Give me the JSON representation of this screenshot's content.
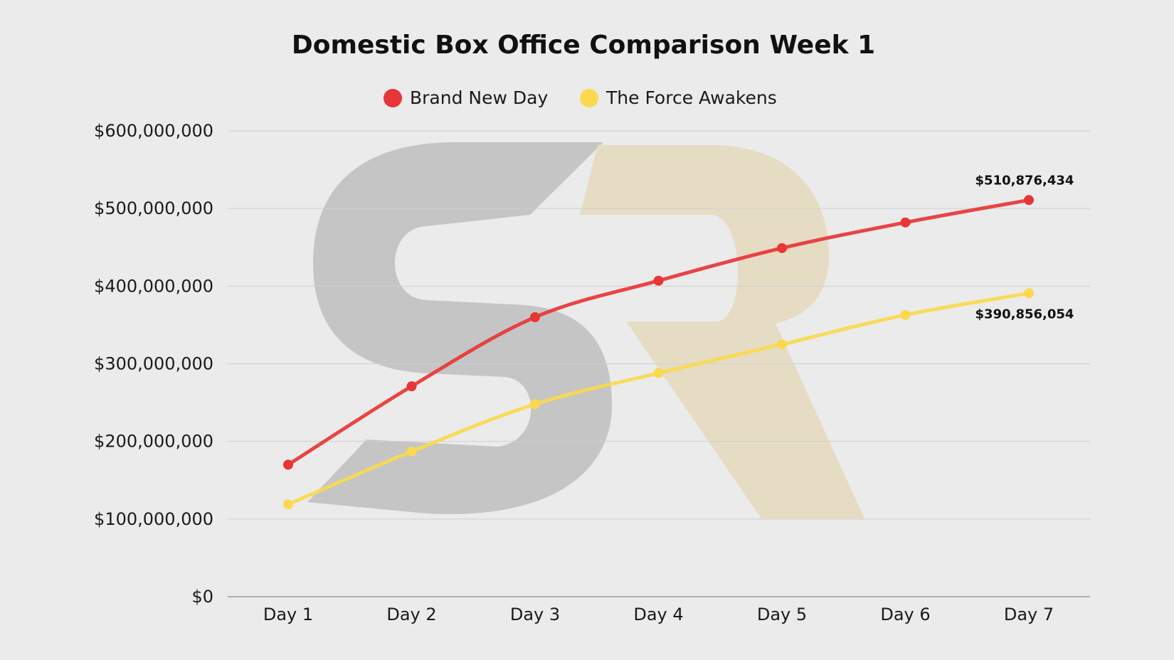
{
  "chart_data": {
    "type": "line",
    "title": "Domestic Box Office Comparison Week 1",
    "xlabel": "",
    "ylabel": "",
    "categories": [
      "Day 1",
      "Day 2",
      "Day 3",
      "Day 4",
      "Day 5",
      "Day 6",
      "Day 7"
    ],
    "ylim": [
      0,
      600000000
    ],
    "yticks": [
      0,
      100000000,
      200000000,
      300000000,
      400000000,
      500000000,
      600000000
    ],
    "ytick_labels": [
      "$0",
      "$100,000,000",
      "$200,000,000",
      "$300,000,000",
      "$400,000,000",
      "$500,000,000",
      "$600,000,000"
    ],
    "grid": true,
    "legend": "top-center",
    "series": [
      {
        "name": "Brand New Day",
        "color": "#e83535",
        "values": [
          170000000,
          271000000,
          360000000,
          407000000,
          449000000,
          482000000,
          510876434
        ],
        "end_label": "$510,876,434"
      },
      {
        "name": "The Force Awakens",
        "color": "#fad94e",
        "values": [
          119000000,
          187000000,
          248000000,
          288000000,
          325000000,
          363000000,
          390856054
        ],
        "end_label": "$390,856,054"
      }
    ]
  },
  "watermark": {
    "text": "SR",
    "colors": [
      "#c5c5c5",
      "#e6dcc4"
    ]
  }
}
